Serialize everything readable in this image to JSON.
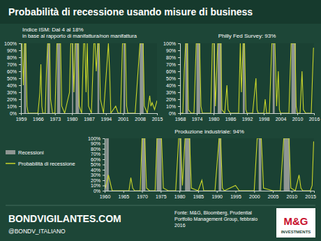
{
  "title": "Probabilità di recessione usando misure di business",
  "chart_data": [
    {
      "type": "line",
      "title": "Indice ISM: Dal 4 al 18%",
      "subtitle": "in base al rapporto di manifattura/non manifattura",
      "xlim": [
        1959,
        2015
      ],
      "xticks": [
        1959,
        1966,
        1973,
        1980,
        1987,
        1994,
        2001,
        2008,
        2015
      ],
      "ylim": [
        0,
        100
      ],
      "yticks": [
        {
          "value": 0,
          "label": "0%"
        },
        {
          "value": 10,
          "label": "10%"
        },
        {
          "value": 20,
          "label": "20%"
        },
        {
          "value": 30,
          "label": "30%"
        },
        {
          "value": 40,
          "label": "40%"
        },
        {
          "value": 50,
          "label": "50%"
        },
        {
          "value": 60,
          "label": "60%"
        },
        {
          "value": 70,
          "label": "70%"
        },
        {
          "value": 80,
          "label": "80%"
        },
        {
          "value": 90,
          "label": "90%"
        },
        {
          "value": 100,
          "label": "100%"
        }
      ],
      "grid": false,
      "series": [
        {
          "type": "bar",
          "color": "#8f9693",
          "x_start": [
            1960.3,
            1969.9,
            1973.9,
            1980.0,
            1981.5,
            1990.5,
            2001.2,
            2007.9
          ],
          "x_end": [
            1961.1,
            1970.9,
            1975.2,
            1980.5,
            1982.9,
            1991.2,
            2001.9,
            2009.5
          ],
          "values": [
            100,
            100,
            100,
            100,
            100,
            100,
            100,
            100
          ]
        },
        {
          "type": "line",
          "color": "#c9d62b",
          "x": [
            1959,
            1959.5,
            1960,
            1960.5,
            1961,
            1961.5,
            1962,
            1964,
            1966,
            1966.8,
            1967.2,
            1967.6,
            1968,
            1969,
            1969.5,
            1970,
            1970.8,
            1971.2,
            1972,
            1973,
            1973.8,
            1974.5,
            1975.3,
            1975.8,
            1977,
            1979,
            1979.5,
            1980.3,
            1980.8,
            1981.3,
            1981.8,
            1982.5,
            1983,
            1984,
            1984.8,
            1985.3,
            1985.8,
            1986.3,
            1986.8,
            1988,
            1989,
            1989.5,
            1990,
            1990.6,
            1991.2,
            1991.7,
            1993,
            1995,
            1995.5,
            1996,
            1998,
            1999,
            2000,
            2000.8,
            2001.5,
            2002,
            2002.5,
            2003,
            2006,
            2008,
            2008.8,
            2009.3,
            2009.8,
            2011,
            2012,
            2012.5,
            2013,
            2014,
            2015
          ],
          "values": [
            100,
            100,
            40,
            100,
            100,
            10,
            0,
            0,
            0,
            30,
            70,
            10,
            0,
            0,
            60,
            100,
            100,
            20,
            0,
            0,
            100,
            100,
            100,
            10,
            0,
            30,
            100,
            100,
            30,
            100,
            100,
            100,
            10,
            0,
            100,
            100,
            30,
            100,
            10,
            0,
            100,
            100,
            60,
            100,
            100,
            20,
            0,
            100,
            60,
            0,
            10,
            0,
            0,
            100,
            100,
            100,
            10,
            0,
            0,
            100,
            100,
            100,
            10,
            0,
            25,
            10,
            15,
            5,
            18
          ]
        }
      ]
    },
    {
      "type": "line",
      "title": "Philly Fed Survey: 93%",
      "xlim": [
        1968,
        2016
      ],
      "xticks": [
        1968,
        1974,
        1980,
        1986,
        1992,
        1998,
        2004,
        2010,
        2016
      ],
      "ylim": [
        0,
        100
      ],
      "yticks": [
        {
          "value": 0,
          "label": "0%"
        },
        {
          "value": 10,
          "label": "10%"
        },
        {
          "value": 20,
          "label": "20%"
        },
        {
          "value": 30,
          "label": "30%"
        },
        {
          "value": 40,
          "label": "40%"
        },
        {
          "value": 50,
          "label": "50%"
        },
        {
          "value": 60,
          "label": "60%"
        },
        {
          "value": 70,
          "label": "70%"
        },
        {
          "value": 80,
          "label": "80%"
        },
        {
          "value": 90,
          "label": "90%"
        },
        {
          "value": 100,
          "label": "100%"
        }
      ],
      "grid": false,
      "series": [
        {
          "type": "bar",
          "color": "#8f9693",
          "x_start": [
            1969.9,
            1973.9,
            1980.0,
            1981.5,
            1990.5,
            2001.2,
            2007.9
          ],
          "x_end": [
            1970.9,
            1975.2,
            1980.5,
            1982.9,
            1991.2,
            2001.9,
            2009.5
          ],
          "values": [
            100,
            100,
            100,
            100,
            100,
            100,
            100
          ]
        },
        {
          "type": "line",
          "color": "#c9d62b",
          "x": [
            1968,
            1969,
            1969.5,
            1970,
            1970.6,
            1971,
            1972,
            1973,
            1973.8,
            1974.4,
            1975,
            1975.5,
            1976,
            1977,
            1978,
            1979,
            1979.6,
            1980.2,
            1980.7,
            1981.5,
            1982,
            1982.6,
            1983,
            1984,
            1984.8,
            1985.2,
            1986,
            1987,
            1988,
            1989,
            1989.6,
            1990,
            1990.6,
            1991.1,
            1991.6,
            1992,
            1993,
            1994,
            1995.2,
            1995.6,
            1996,
            1997,
            1998,
            1998.5,
            1999,
            2000,
            2000.9,
            2001.5,
            2002,
            2002.6,
            2003.2,
            2003.6,
            2004,
            2005,
            2006,
            2007,
            2007.8,
            2008.5,
            2009.2,
            2009.6,
            2010,
            2011,
            2011.7,
            2012.2,
            2013,
            2014,
            2015,
            2015.8,
            2016
          ],
          "values": [
            0,
            0,
            60,
            100,
            100,
            5,
            0,
            0,
            100,
            100,
            100,
            10,
            0,
            0,
            0,
            0,
            100,
            100,
            10,
            100,
            100,
            100,
            5,
            0,
            40,
            5,
            0,
            0,
            0,
            0,
            100,
            30,
            100,
            100,
            5,
            0,
            0,
            0,
            50,
            5,
            0,
            0,
            0,
            20,
            0,
            0,
            100,
            100,
            100,
            10,
            60,
            5,
            0,
            0,
            0,
            0,
            100,
            100,
            100,
            10,
            0,
            0,
            60,
            5,
            0,
            0,
            0,
            93,
            93
          ]
        }
      ]
    },
    {
      "type": "line",
      "title": "Produzione industriale: 94%",
      "xlim": [
        1960,
        2016
      ],
      "xticks": [
        1960,
        1965,
        1970,
        1975,
        1980,
        1985,
        1990,
        1995,
        2000,
        2005,
        2010,
        2015
      ],
      "ylim": [
        0,
        100
      ],
      "yticks": [
        {
          "value": 0,
          "label": "0%"
        },
        {
          "value": 10,
          "label": "10%"
        },
        {
          "value": 20,
          "label": "20%"
        },
        {
          "value": 30,
          "label": "30%"
        },
        {
          "value": 40,
          "label": "40%"
        },
        {
          "value": 50,
          "label": "50%"
        },
        {
          "value": 60,
          "label": "60%"
        },
        {
          "value": 70,
          "label": "70%"
        },
        {
          "value": 80,
          "label": "80%"
        },
        {
          "value": 90,
          "label": "90%"
        },
        {
          "value": 100,
          "label": "100%"
        }
      ],
      "grid": false,
      "legend": "left",
      "series": [
        {
          "name": "Recessioni",
          "type": "bar",
          "color": "#8f9693",
          "x_start": [
            1960.3,
            1969.9,
            1973.9,
            1980.0,
            1981.5,
            1990.5,
            2001.2,
            2007.9
          ],
          "x_end": [
            1961.1,
            1970.9,
            1975.2,
            1980.5,
            1982.9,
            1991.2,
            2001.9,
            2009.5
          ],
          "values": [
            100,
            100,
            100,
            100,
            100,
            100,
            100,
            100
          ]
        },
        {
          "name": "Probabilità di recessione",
          "type": "line",
          "color": "#c9d62b",
          "x": [
            1960,
            1961,
            1962,
            1965,
            1966.5,
            1967,
            1967.5,
            1968,
            1969.5,
            1970,
            1970.7,
            1971.2,
            1972,
            1973.5,
            1974,
            1974.6,
            1975.2,
            1975.7,
            1977,
            1979,
            1979.8,
            1980.3,
            1980.8,
            1981.5,
            1982,
            1982.7,
            1983.2,
            1985,
            1986,
            1986.5,
            1988,
            1989.5,
            1990.6,
            1991,
            1991.5,
            1992,
            1995,
            1996,
            1998,
            2000,
            2000.8,
            2001.4,
            2001.9,
            2002.5,
            2005,
            2007,
            2007.9,
            2008.6,
            2009.3,
            2009.8,
            2011,
            2012,
            2012.5,
            2013,
            2015,
            2015.5,
            2015.9
          ],
          "values": [
            0,
            30,
            0,
            0,
            0,
            25,
            5,
            0,
            0,
            100,
            100,
            5,
            0,
            0,
            100,
            100,
            100,
            5,
            0,
            0,
            100,
            100,
            10,
            100,
            100,
            100,
            5,
            0,
            20,
            0,
            0,
            0,
            100,
            100,
            5,
            0,
            10,
            0,
            0,
            0,
            100,
            100,
            100,
            5,
            0,
            0,
            100,
            100,
            100,
            5,
            0,
            30,
            5,
            0,
            0,
            10,
            94
          ]
        }
      ]
    }
  ],
  "footer": {
    "site": "BONDVIGILANTES.COM",
    "twitter": "@BONDV_ITALIANO",
    "source": [
      "Fonte: M&G, Bloomberg, Prudential",
      "Portfolio Management Group, febbraio",
      "2016"
    ],
    "logo": "M&G",
    "logo_sub": "INVESTMENTS"
  }
}
